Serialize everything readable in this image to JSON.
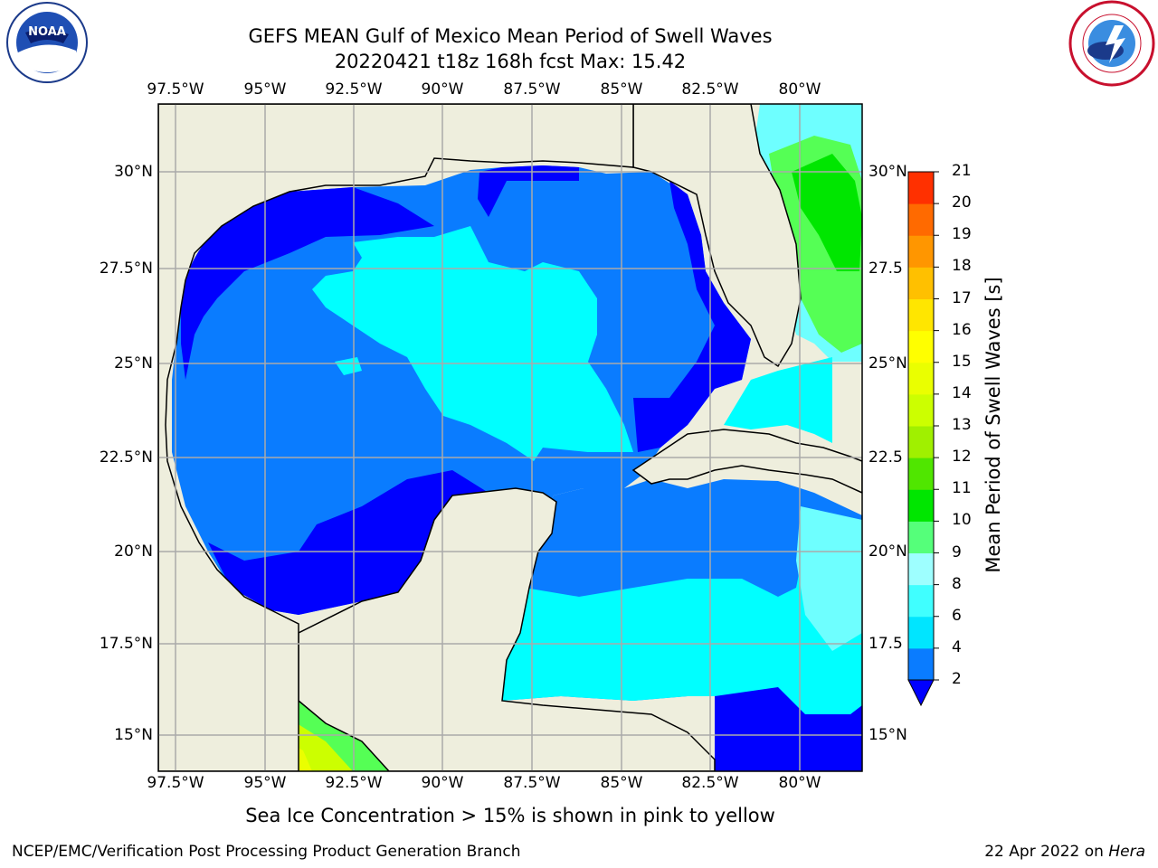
{
  "title_line1": "GEFS MEAN Gulf of Mexico Mean Period of Swell Waves",
  "title_line2": "20220421 t18z 168h fcst   Max: 15.42",
  "longitude_labels": [
    "97.5°W",
    "95°W",
    "92.5°W",
    "90°W",
    "87.5°W",
    "85°W",
    "82.5°W",
    "80°W"
  ],
  "latitude_labels_left": [
    "30°N",
    "27.5°N",
    "25°N",
    "22.5°N",
    "20°N",
    "17.5°N",
    "15°N"
  ],
  "latitude_labels_right": [
    "30°N",
    "27.5",
    "25°N",
    "22.5",
    "20°N",
    "17.5",
    "15°N"
  ],
  "colorbar": {
    "title": "Mean Period of Swell Waves [s]",
    "ticks": [
      "2",
      "4",
      "6",
      "8",
      "9",
      "10",
      "11",
      "12",
      "13",
      "14",
      "15",
      "16",
      "17",
      "18",
      "19",
      "20",
      "21"
    ],
    "colors": [
      "#0a7cff",
      "#00e5ff",
      "#40ffff",
      "#9effff",
      "#55ff7a",
      "#00e600",
      "#50e600",
      "#a0f000",
      "#ccff00",
      "#eaff00",
      "#ffff00",
      "#ffe600",
      "#ffc000",
      "#ff9600",
      "#ff6a00",
      "#ff3000"
    ],
    "under_color": "#0000ff"
  },
  "note": "Sea Ice Concentration > 15% is shown in pink to yellow",
  "footer_left": "NCEP/EMC/Verification Post Processing Product Generation Branch",
  "footer_date": "22 Apr 2022 on ",
  "footer_machine": "Hera",
  "logos": {
    "left": "noaa-logo",
    "right": "nws-logo"
  },
  "map_colors": {
    "land": "#eeeedd",
    "sea_deep": "#0000ff",
    "sea_main": "#0a7cff",
    "sea_light": "#00ffff",
    "sea_pale": "#6effff",
    "green": "#55ff55",
    "yellow_green": "#ccff00"
  }
}
